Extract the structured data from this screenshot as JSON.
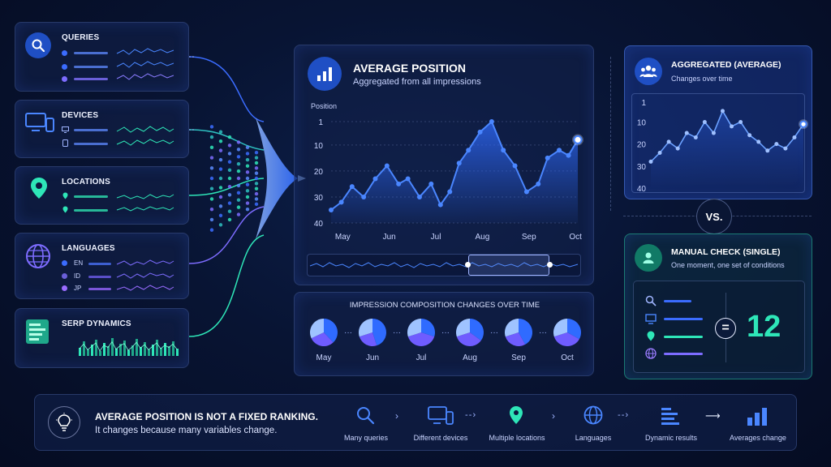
{
  "colors": {
    "accent": "#2f6bff",
    "teal": "#2ee6b8",
    "purple": "#7d6cff",
    "panel_bg": "#12204a"
  },
  "left_cards": [
    {
      "title": "QUERIES",
      "icon": "search-icon"
    },
    {
      "title": "DEVICES",
      "icon": "devices-icon"
    },
    {
      "title": "LOCATIONS",
      "icon": "location-pin-icon"
    },
    {
      "title": "LANGUAGES",
      "icon": "globe-icon",
      "items": [
        "EN",
        "ID",
        "JP"
      ]
    },
    {
      "title": "SERP DYNAMICS",
      "icon": "serp-icon"
    }
  ],
  "main_panel": {
    "title": "AVERAGE POSITION",
    "subtitle": "Aggregated from all impressions",
    "icon": "bar-chart-icon"
  },
  "chart_data": [
    {
      "type": "line",
      "ylabel": "Position",
      "y_ticks": [
        "1",
        "10",
        "20",
        "30",
        "40"
      ],
      "ylim": [
        40,
        1
      ],
      "y_inverted": true,
      "x_tick_labels": [
        "May",
        "Jun",
        "Jul",
        "Aug",
        "Sep",
        "Oct"
      ],
      "x": [
        0,
        0.22,
        0.45,
        0.7,
        0.95,
        1.2,
        1.45,
        1.65,
        1.9,
        2.15,
        2.35,
        2.55,
        2.75,
        2.95,
        3.2,
        3.45,
        3.7,
        3.95,
        4.2,
        4.45,
        4.65,
        4.9,
        5.1,
        5.3
      ],
      "values": [
        35,
        32,
        26,
        30,
        23,
        18,
        25,
        23,
        30,
        25,
        33,
        28,
        17,
        12,
        5,
        1,
        12,
        18,
        28,
        25,
        15,
        12,
        14,
        8
      ],
      "grid": true
    },
    {
      "type": "line",
      "title": "AGGREGATED (AVERAGE)",
      "subtitle": "Changes over time",
      "y_ticks": [
        "1",
        "10",
        "20",
        "30",
        "40"
      ],
      "ylim": [
        40,
        1
      ],
      "y_inverted": true,
      "x": [
        0,
        1,
        2,
        3,
        4,
        5,
        6,
        7,
        8,
        9,
        10,
        11,
        12,
        13,
        14,
        15,
        16,
        17
      ],
      "values": [
        28,
        24,
        19,
        22,
        15,
        17,
        10,
        15,
        5,
        12,
        10,
        16,
        19,
        23,
        20,
        22,
        17,
        11
      ],
      "grid": false
    }
  ],
  "composition": {
    "title": "IMPRESSION COMPOSITION CHANGES OVER TIME",
    "months": [
      {
        "label": "May",
        "slices": [
          0.38,
          0.3,
          0.32
        ]
      },
      {
        "label": "Jun",
        "slices": [
          0.45,
          0.25,
          0.3
        ]
      },
      {
        "label": "Jul",
        "slices": [
          0.3,
          0.4,
          0.3
        ]
      },
      {
        "label": "Aug",
        "slices": [
          0.35,
          0.35,
          0.3
        ]
      },
      {
        "label": "Sep",
        "slices": [
          0.42,
          0.28,
          0.3
        ]
      },
      {
        "label": "Oct",
        "slices": [
          0.33,
          0.37,
          0.3
        ]
      }
    ]
  },
  "vs_label": "VS.",
  "manual_check": {
    "title": "MANUAL CHECK (SINGLE)",
    "subtitle": "One moment, one set of conditions",
    "equals": "=",
    "value": "12"
  },
  "bottom_bar": {
    "headline": "AVERAGE POSITION IS NOT A FIXED RANKING.",
    "subline": "It changes because many variables change.",
    "steps": [
      {
        "label": "Many queries",
        "icon": "search-icon"
      },
      {
        "label": "Different devices",
        "icon": "devices-icon"
      },
      {
        "label": "Multiple locations",
        "icon": "location-pin-icon"
      },
      {
        "label": "Languages",
        "icon": "globe-icon"
      },
      {
        "label": "Dynamic results",
        "icon": "serp-icon"
      },
      {
        "label": "Averages change",
        "icon": "bar-chart-icon"
      }
    ]
  }
}
